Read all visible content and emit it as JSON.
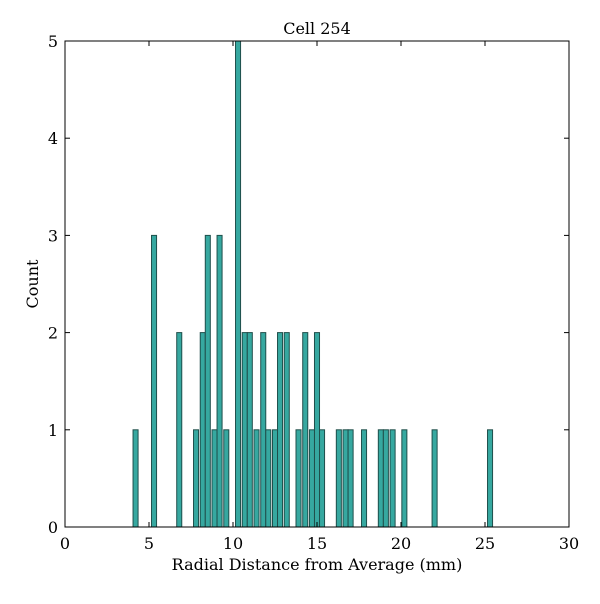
{
  "chart_data": {
    "type": "bar",
    "title": "Cell 254",
    "xlabel": "Radial Distance from Average (mm)",
    "ylabel": "Count",
    "xlim": [
      0,
      30
    ],
    "ylim": [
      0,
      5
    ],
    "xticks": [
      "0",
      "5",
      "10",
      "15",
      "20",
      "25",
      "30"
    ],
    "yticks": [
      "0",
      "1",
      "2",
      "3",
      "4",
      "5"
    ],
    "grid": false,
    "bar_width": 0.3,
    "bar_color": "#36a8a0",
    "edge_color": "#1f4f4b",
    "bins": [
      {
        "x": 4.2,
        "count": 1
      },
      {
        "x": 5.3,
        "count": 3
      },
      {
        "x": 6.8,
        "count": 2
      },
      {
        "x": 7.8,
        "count": 1
      },
      {
        "x": 8.2,
        "count": 2
      },
      {
        "x": 8.5,
        "count": 3
      },
      {
        "x": 8.9,
        "count": 1
      },
      {
        "x": 9.2,
        "count": 3
      },
      {
        "x": 9.6,
        "count": 1
      },
      {
        "x": 10.3,
        "count": 5
      },
      {
        "x": 10.7,
        "count": 2
      },
      {
        "x": 11.0,
        "count": 2
      },
      {
        "x": 11.4,
        "count": 1
      },
      {
        "x": 11.8,
        "count": 2
      },
      {
        "x": 12.1,
        "count": 1
      },
      {
        "x": 12.5,
        "count": 1
      },
      {
        "x": 12.8,
        "count": 2
      },
      {
        "x": 13.2,
        "count": 2
      },
      {
        "x": 13.9,
        "count": 1
      },
      {
        "x": 14.3,
        "count": 2
      },
      {
        "x": 14.7,
        "count": 1
      },
      {
        "x": 15.0,
        "count": 2
      },
      {
        "x": 15.3,
        "count": 1
      },
      {
        "x": 16.3,
        "count": 1
      },
      {
        "x": 16.7,
        "count": 1
      },
      {
        "x": 17.0,
        "count": 1
      },
      {
        "x": 17.8,
        "count": 1
      },
      {
        "x": 18.8,
        "count": 1
      },
      {
        "x": 19.1,
        "count": 1
      },
      {
        "x": 19.5,
        "count": 1
      },
      {
        "x": 20.2,
        "count": 1
      },
      {
        "x": 22.0,
        "count": 1
      },
      {
        "x": 25.3,
        "count": 1
      }
    ]
  }
}
